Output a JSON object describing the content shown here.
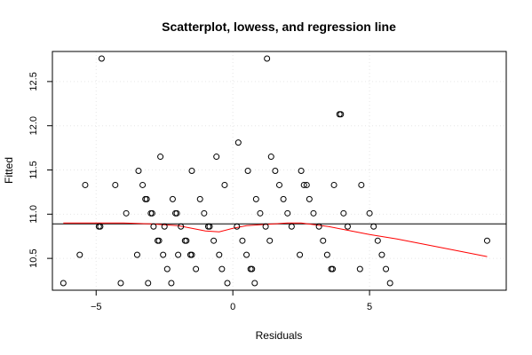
{
  "chart_data": {
    "type": "scatter",
    "title": "Scatterplot, lowess, and regression line",
    "xlabel": "Residuals",
    "ylabel": "Fitted",
    "xlim": [
      -6.6,
      10.0
    ],
    "ylim": [
      10.14,
      12.84
    ],
    "xticks": [
      -5,
      0,
      5
    ],
    "yticks": [
      10.5,
      11.0,
      11.5,
      12.0,
      12.5
    ],
    "grid": true,
    "colors": {
      "points": "#000000",
      "lowess": "#ff0000",
      "regression": "#000000"
    },
    "regression_line": {
      "y": 10.89
    },
    "lowess": {
      "x": [
        -6.2,
        -5,
        -4,
        -3,
        -2,
        -1.5,
        -1,
        -0.5,
        0,
        0.5,
        1,
        1.5,
        2,
        2.5,
        3,
        3.5,
        4,
        4.5,
        5,
        6,
        7,
        8,
        9.3
      ],
      "y": [
        10.9,
        10.9,
        10.9,
        10.89,
        10.87,
        10.84,
        10.81,
        10.8,
        10.84,
        10.87,
        10.88,
        10.89,
        10.9,
        10.9,
        10.88,
        10.86,
        10.83,
        10.8,
        10.77,
        10.72,
        10.66,
        10.6,
        10.52
      ]
    },
    "points": [
      {
        "x": -6.2,
        "y": 10.22
      },
      {
        "x": -5.6,
        "y": 10.54
      },
      {
        "x": -5.4,
        "y": 11.33
      },
      {
        "x": -4.9,
        "y": 10.86
      },
      {
        "x": -4.85,
        "y": 10.86
      },
      {
        "x": -4.8,
        "y": 12.76
      },
      {
        "x": -4.3,
        "y": 11.33
      },
      {
        "x": -4.1,
        "y": 10.22
      },
      {
        "x": -3.9,
        "y": 11.01
      },
      {
        "x": -3.5,
        "y": 10.54
      },
      {
        "x": -3.45,
        "y": 11.49
      },
      {
        "x": -3.3,
        "y": 11.33
      },
      {
        "x": -3.2,
        "y": 11.17
      },
      {
        "x": -3.15,
        "y": 11.17
      },
      {
        "x": -3.1,
        "y": 10.22
      },
      {
        "x": -3.0,
        "y": 11.01
      },
      {
        "x": -2.95,
        "y": 11.01
      },
      {
        "x": -2.9,
        "y": 10.86
      },
      {
        "x": -2.75,
        "y": 10.7
      },
      {
        "x": -2.7,
        "y": 10.7
      },
      {
        "x": -2.65,
        "y": 11.65
      },
      {
        "x": -2.55,
        "y": 10.54
      },
      {
        "x": -2.5,
        "y": 10.86
      },
      {
        "x": -2.4,
        "y": 10.38
      },
      {
        "x": -2.25,
        "y": 10.22
      },
      {
        "x": -2.2,
        "y": 11.17
      },
      {
        "x": -2.1,
        "y": 11.01
      },
      {
        "x": -2.05,
        "y": 11.01
      },
      {
        "x": -2.0,
        "y": 10.54
      },
      {
        "x": -1.9,
        "y": 10.86
      },
      {
        "x": -1.75,
        "y": 10.7
      },
      {
        "x": -1.7,
        "y": 10.7
      },
      {
        "x": -1.55,
        "y": 10.54
      },
      {
        "x": -1.5,
        "y": 10.54
      },
      {
        "x": -1.5,
        "y": 11.49
      },
      {
        "x": -1.35,
        "y": 10.38
      },
      {
        "x": -1.2,
        "y": 11.17
      },
      {
        "x": -1.05,
        "y": 11.01
      },
      {
        "x": -0.9,
        "y": 10.86
      },
      {
        "x": -0.85,
        "y": 10.86
      },
      {
        "x": -0.7,
        "y": 10.7
      },
      {
        "x": -0.6,
        "y": 11.65
      },
      {
        "x": -0.5,
        "y": 10.54
      },
      {
        "x": -0.4,
        "y": 10.38
      },
      {
        "x": -0.3,
        "y": 11.33
      },
      {
        "x": -0.2,
        "y": 10.22
      },
      {
        "x": 0.15,
        "y": 10.86
      },
      {
        "x": 0.2,
        "y": 11.81
      },
      {
        "x": 0.35,
        "y": 10.7
      },
      {
        "x": 0.5,
        "y": 10.54
      },
      {
        "x": 0.55,
        "y": 11.49
      },
      {
        "x": 0.65,
        "y": 10.38
      },
      {
        "x": 0.7,
        "y": 10.38
      },
      {
        "x": 0.8,
        "y": 10.22
      },
      {
        "x": 0.85,
        "y": 11.17
      },
      {
        "x": 1.0,
        "y": 11.01
      },
      {
        "x": 1.2,
        "y": 10.86
      },
      {
        "x": 1.25,
        "y": 12.76
      },
      {
        "x": 1.35,
        "y": 10.7
      },
      {
        "x": 1.4,
        "y": 11.65
      },
      {
        "x": 1.55,
        "y": 11.49
      },
      {
        "x": 1.7,
        "y": 11.33
      },
      {
        "x": 1.85,
        "y": 11.17
      },
      {
        "x": 2.0,
        "y": 11.01
      },
      {
        "x": 2.15,
        "y": 10.86
      },
      {
        "x": 2.45,
        "y": 10.54
      },
      {
        "x": 2.5,
        "y": 11.49
      },
      {
        "x": 2.6,
        "y": 11.33
      },
      {
        "x": 2.7,
        "y": 11.33
      },
      {
        "x": 2.8,
        "y": 11.17
      },
      {
        "x": 2.95,
        "y": 11.01
      },
      {
        "x": 3.15,
        "y": 10.86
      },
      {
        "x": 3.3,
        "y": 10.7
      },
      {
        "x": 3.45,
        "y": 10.54
      },
      {
        "x": 3.6,
        "y": 10.38
      },
      {
        "x": 3.65,
        "y": 10.38
      },
      {
        "x": 3.7,
        "y": 11.33
      },
      {
        "x": 3.9,
        "y": 12.13
      },
      {
        "x": 3.95,
        "y": 12.13
      },
      {
        "x": 4.05,
        "y": 11.01
      },
      {
        "x": 4.2,
        "y": 10.86
      },
      {
        "x": 4.65,
        "y": 10.38
      },
      {
        "x": 4.7,
        "y": 11.33
      },
      {
        "x": 5.0,
        "y": 11.01
      },
      {
        "x": 5.15,
        "y": 10.86
      },
      {
        "x": 5.3,
        "y": 10.7
      },
      {
        "x": 5.45,
        "y": 10.54
      },
      {
        "x": 5.6,
        "y": 10.38
      },
      {
        "x": 5.75,
        "y": 10.22
      },
      {
        "x": 9.3,
        "y": 10.7
      }
    ]
  }
}
